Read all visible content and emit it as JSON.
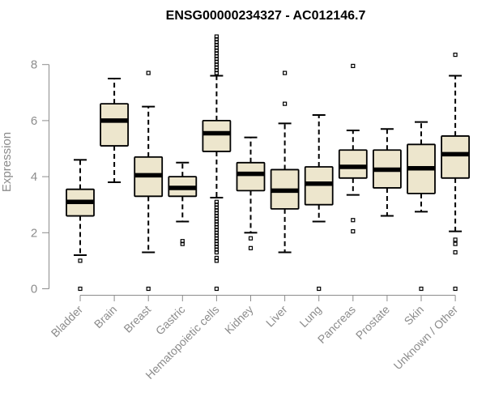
{
  "colors": {
    "box_fill": "#ede6cd",
    "stroke": "#000000",
    "axis": "#8c8c8c",
    "label": "#8c8c8c",
    "background": "#ffffff"
  },
  "chart_data": {
    "type": "boxplot",
    "title": "ENSG00000234327 - AC012146.7",
    "xlabel": "",
    "ylabel": "Expression",
    "ylim": [
      0,
      9
    ],
    "yticks": [
      0,
      2,
      4,
      6,
      8
    ],
    "ytick_labels": [
      "0",
      "2",
      "4",
      "6",
      "8"
    ],
    "grid": false,
    "legend": "none",
    "categories": [
      "Bladder",
      "Brain",
      "Breast",
      "Gastric",
      "Hematopoietic cells",
      "Kidney",
      "Liver",
      "Lung",
      "Pancreas",
      "Prostate",
      "Skin",
      "Unknown / Other"
    ],
    "boxes": [
      {
        "name": "Bladder",
        "whisker_low": 1.2,
        "q1": 2.6,
        "median": 3.1,
        "q3": 3.55,
        "whisker_high": 4.6,
        "outliers": [
          1.0,
          0.0
        ]
      },
      {
        "name": "Brain",
        "whisker_low": 3.8,
        "q1": 5.1,
        "median": 6.0,
        "q3": 6.6,
        "whisker_high": 7.5,
        "outliers": []
      },
      {
        "name": "Breast",
        "whisker_low": 1.3,
        "q1": 3.3,
        "median": 4.05,
        "q3": 4.7,
        "whisker_high": 6.5,
        "outliers": [
          7.7,
          0.0
        ]
      },
      {
        "name": "Gastric",
        "whisker_low": 2.4,
        "q1": 3.3,
        "median": 3.6,
        "q3": 4.0,
        "whisker_high": 4.5,
        "outliers": [
          1.7,
          1.6
        ]
      },
      {
        "name": "Hematopoietic cells",
        "whisker_low": 3.25,
        "q1": 4.9,
        "median": 5.55,
        "q3": 6.0,
        "whisker_high": 7.6,
        "outliers": [
          7.7,
          7.8,
          7.9,
          8.0,
          8.1,
          8.2,
          8.3,
          8.4,
          8.5,
          8.6,
          8.7,
          8.8,
          8.9,
          9.0,
          3.1,
          3.0,
          2.9,
          2.8,
          2.7,
          2.6,
          2.5,
          2.4,
          2.3,
          2.2,
          2.1,
          2.0,
          1.9,
          1.8,
          1.7,
          1.6,
          1.5,
          1.4,
          1.3,
          1.1,
          1.0,
          0.0
        ]
      },
      {
        "name": "Kidney",
        "whisker_low": 2.0,
        "q1": 3.5,
        "median": 4.1,
        "q3": 4.5,
        "whisker_high": 5.4,
        "outliers": [
          1.8,
          1.45
        ]
      },
      {
        "name": "Liver",
        "whisker_low": 1.3,
        "q1": 2.85,
        "median": 3.5,
        "q3": 4.25,
        "whisker_high": 5.9,
        "outliers": [
          6.6,
          7.7
        ]
      },
      {
        "name": "Lung",
        "whisker_low": 2.4,
        "q1": 3.0,
        "median": 3.75,
        "q3": 4.35,
        "whisker_high": 6.2,
        "outliers": [
          0.0
        ]
      },
      {
        "name": "Pancreas",
        "whisker_low": 3.35,
        "q1": 3.95,
        "median": 4.35,
        "q3": 4.95,
        "whisker_high": 5.65,
        "outliers": [
          7.95,
          2.45,
          2.05
        ]
      },
      {
        "name": "Prostate",
        "whisker_low": 2.6,
        "q1": 3.6,
        "median": 4.25,
        "q3": 4.95,
        "whisker_high": 5.7,
        "outliers": []
      },
      {
        "name": "Skin",
        "whisker_low": 2.75,
        "q1": 3.4,
        "median": 4.3,
        "q3": 5.15,
        "whisker_high": 5.95,
        "outliers": [
          0.0
        ]
      },
      {
        "name": "Unknown / Other",
        "whisker_low": 2.05,
        "q1": 3.95,
        "median": 4.8,
        "q3": 5.45,
        "whisker_high": 7.6,
        "outliers": [
          8.35,
          1.75,
          1.6,
          1.3,
          0.0
        ]
      }
    ]
  }
}
